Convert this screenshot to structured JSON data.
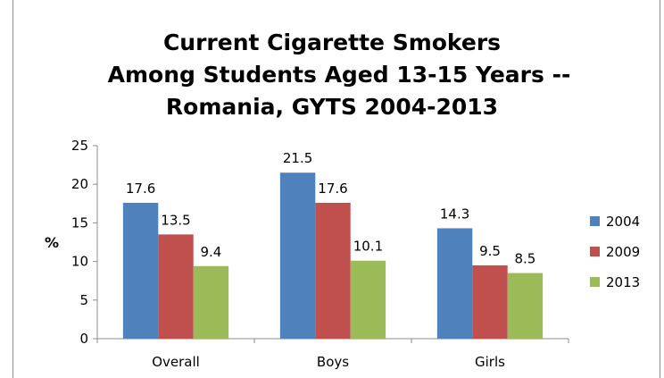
{
  "chart_data": {
    "type": "bar",
    "title_lines": [
      "Current Cigarette Smokers",
      "Among Students Aged 13-15 Years --",
      "Romania, GYTS 2004-2013"
    ],
    "xlabel": "",
    "ylabel": "%",
    "ylim": [
      0,
      25
    ],
    "yticks": [
      "0",
      "5",
      "10",
      "15",
      "20",
      "25"
    ],
    "categories": [
      "Overall",
      "Boys",
      "Girls"
    ],
    "series": [
      {
        "name": "2004",
        "color": "#4f81bd",
        "values": [
          17.6,
          21.5,
          14.3
        ],
        "labels": [
          "17.6",
          "21.5",
          "14.3"
        ]
      },
      {
        "name": "2009",
        "color": "#c0504d",
        "values": [
          13.5,
          17.6,
          9.5
        ],
        "labels": [
          "13.5",
          "17.6",
          "9.5"
        ]
      },
      {
        "name": "2013",
        "color": "#9bbb59",
        "values": [
          9.4,
          10.1,
          8.5
        ],
        "labels": [
          "9.4",
          "10.1",
          "8.5"
        ]
      }
    ],
    "legend_position": "right",
    "grid": false
  }
}
